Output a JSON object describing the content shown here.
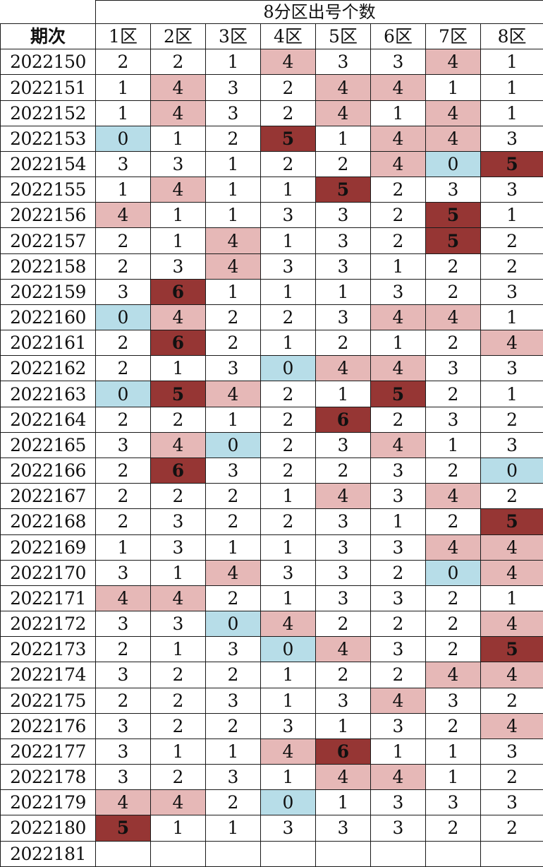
{
  "header": {
    "group_title": "8分区出号个数",
    "period_label": "期次",
    "zones": [
      "1区",
      "2区",
      "3区",
      "4区",
      "5区",
      "6区",
      "7区",
      "8区"
    ]
  },
  "colors": {
    "pink": "#e6b8b7",
    "blue": "#b7dde8",
    "dark": "#963634"
  },
  "rows": [
    {
      "period": "2022150",
      "cells": [
        "2",
        "2",
        "1",
        "4",
        "3",
        "3",
        "4",
        "1"
      ]
    },
    {
      "period": "2022151",
      "cells": [
        "1",
        "4",
        "3",
        "2",
        "4",
        "4",
        "1",
        "1"
      ]
    },
    {
      "period": "2022152",
      "cells": [
        "1",
        "4",
        "3",
        "2",
        "4",
        "1",
        "4",
        "1"
      ]
    },
    {
      "period": "2022153",
      "cells": [
        "0",
        "1",
        "2",
        "5",
        "1",
        "4",
        "4",
        "3"
      ]
    },
    {
      "period": "2022154",
      "cells": [
        "3",
        "3",
        "1",
        "2",
        "2",
        "4",
        "0",
        "5"
      ]
    },
    {
      "period": "2022155",
      "cells": [
        "1",
        "4",
        "1",
        "1",
        "5",
        "2",
        "3",
        "3"
      ]
    },
    {
      "period": "2022156",
      "cells": [
        "4",
        "1",
        "1",
        "3",
        "3",
        "2",
        "5",
        "1"
      ]
    },
    {
      "period": "2022157",
      "cells": [
        "2",
        "1",
        "4",
        "1",
        "3",
        "2",
        "5",
        "2"
      ]
    },
    {
      "period": "2022158",
      "cells": [
        "2",
        "3",
        "4",
        "3",
        "3",
        "1",
        "2",
        "2"
      ]
    },
    {
      "period": "2022159",
      "cells": [
        "3",
        "6",
        "1",
        "1",
        "1",
        "3",
        "2",
        "3"
      ]
    },
    {
      "period": "2022160",
      "cells": [
        "0",
        "4",
        "2",
        "2",
        "3",
        "4",
        "4",
        "1"
      ]
    },
    {
      "period": "2022161",
      "cells": [
        "2",
        "6",
        "2",
        "1",
        "2",
        "1",
        "2",
        "4"
      ]
    },
    {
      "period": "2022162",
      "cells": [
        "2",
        "1",
        "3",
        "0",
        "4",
        "4",
        "3",
        "3"
      ]
    },
    {
      "period": "2022163",
      "cells": [
        "0",
        "5",
        "4",
        "2",
        "1",
        "5",
        "2",
        "1"
      ]
    },
    {
      "period": "2022164",
      "cells": [
        "2",
        "2",
        "1",
        "2",
        "6",
        "2",
        "3",
        "2"
      ]
    },
    {
      "period": "2022165",
      "cells": [
        "3",
        "4",
        "0",
        "2",
        "3",
        "4",
        "1",
        "3"
      ]
    },
    {
      "period": "2022166",
      "cells": [
        "2",
        "6",
        "3",
        "2",
        "2",
        "3",
        "2",
        "0"
      ]
    },
    {
      "period": "2022167",
      "cells": [
        "2",
        "2",
        "2",
        "1",
        "4",
        "3",
        "4",
        "2"
      ]
    },
    {
      "period": "2022168",
      "cells": [
        "2",
        "3",
        "2",
        "2",
        "3",
        "1",
        "2",
        "5"
      ]
    },
    {
      "period": "2022169",
      "cells": [
        "1",
        "3",
        "1",
        "1",
        "3",
        "3",
        "4",
        "4"
      ]
    },
    {
      "period": "2022170",
      "cells": [
        "3",
        "1",
        "4",
        "3",
        "3",
        "2",
        "0",
        "4"
      ]
    },
    {
      "period": "2022171",
      "cells": [
        "4",
        "4",
        "2",
        "1",
        "3",
        "3",
        "2",
        "1"
      ]
    },
    {
      "period": "2022172",
      "cells": [
        "3",
        "3",
        "0",
        "4",
        "2",
        "2",
        "2",
        "4"
      ]
    },
    {
      "period": "2022173",
      "cells": [
        "2",
        "1",
        "3",
        "0",
        "4",
        "3",
        "2",
        "5"
      ]
    },
    {
      "period": "2022174",
      "cells": [
        "3",
        "2",
        "2",
        "1",
        "2",
        "2",
        "4",
        "4"
      ]
    },
    {
      "period": "2022175",
      "cells": [
        "2",
        "2",
        "3",
        "1",
        "3",
        "4",
        "3",
        "2"
      ]
    },
    {
      "period": "2022176",
      "cells": [
        "3",
        "2",
        "2",
        "3",
        "1",
        "3",
        "2",
        "4"
      ]
    },
    {
      "period": "2022177",
      "cells": [
        "3",
        "1",
        "1",
        "4",
        "6",
        "1",
        "1",
        "3"
      ]
    },
    {
      "period": "2022178",
      "cells": [
        "3",
        "2",
        "3",
        "1",
        "4",
        "4",
        "1",
        "2"
      ]
    },
    {
      "period": "2022179",
      "cells": [
        "4",
        "4",
        "2",
        "0",
        "1",
        "3",
        "3",
        "3"
      ]
    },
    {
      "period": "2022180",
      "cells": [
        "5",
        "1",
        "1",
        "3",
        "3",
        "3",
        "2",
        "2"
      ]
    },
    {
      "period": "2022181",
      "cells": [
        "",
        "",
        "",
        "",
        "",
        "",
        "",
        ""
      ]
    }
  ]
}
